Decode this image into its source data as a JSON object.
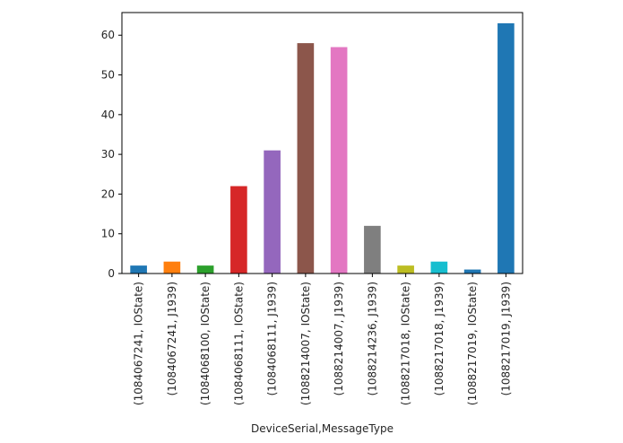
{
  "chart_data": {
    "type": "bar",
    "title": "",
    "xlabel": "DeviceSerial,MessageType",
    "ylabel": "",
    "ylim": [
      0,
      65.7
    ],
    "yticks": [
      0,
      10,
      20,
      30,
      40,
      50,
      60
    ],
    "grid": false,
    "legend": "none",
    "categories": [
      "(1084067241, IOState)",
      "(1084067241, J1939)",
      "(1084068100, IOState)",
      "(1084068111, IOState)",
      "(1084068111, J1939)",
      "(1088214007, IOState)",
      "(1088214007, J1939)",
      "(1088214236, J1939)",
      "(1088217018, IOState)",
      "(1088217018, J1939)",
      "(1088217019, IOState)",
      "(1088217019, J1939)"
    ],
    "values": [
      2,
      3,
      2,
      22,
      31,
      58,
      57,
      12,
      2,
      3,
      1,
      63
    ],
    "colors": [
      "#1f77b4",
      "#ff7f0e",
      "#2ca02c",
      "#d62728",
      "#9467bd",
      "#8c564b",
      "#e377c2",
      "#7f7f7f",
      "#bcbd22",
      "#17becf",
      "#1f77b4",
      "#1f77b4"
    ]
  }
}
